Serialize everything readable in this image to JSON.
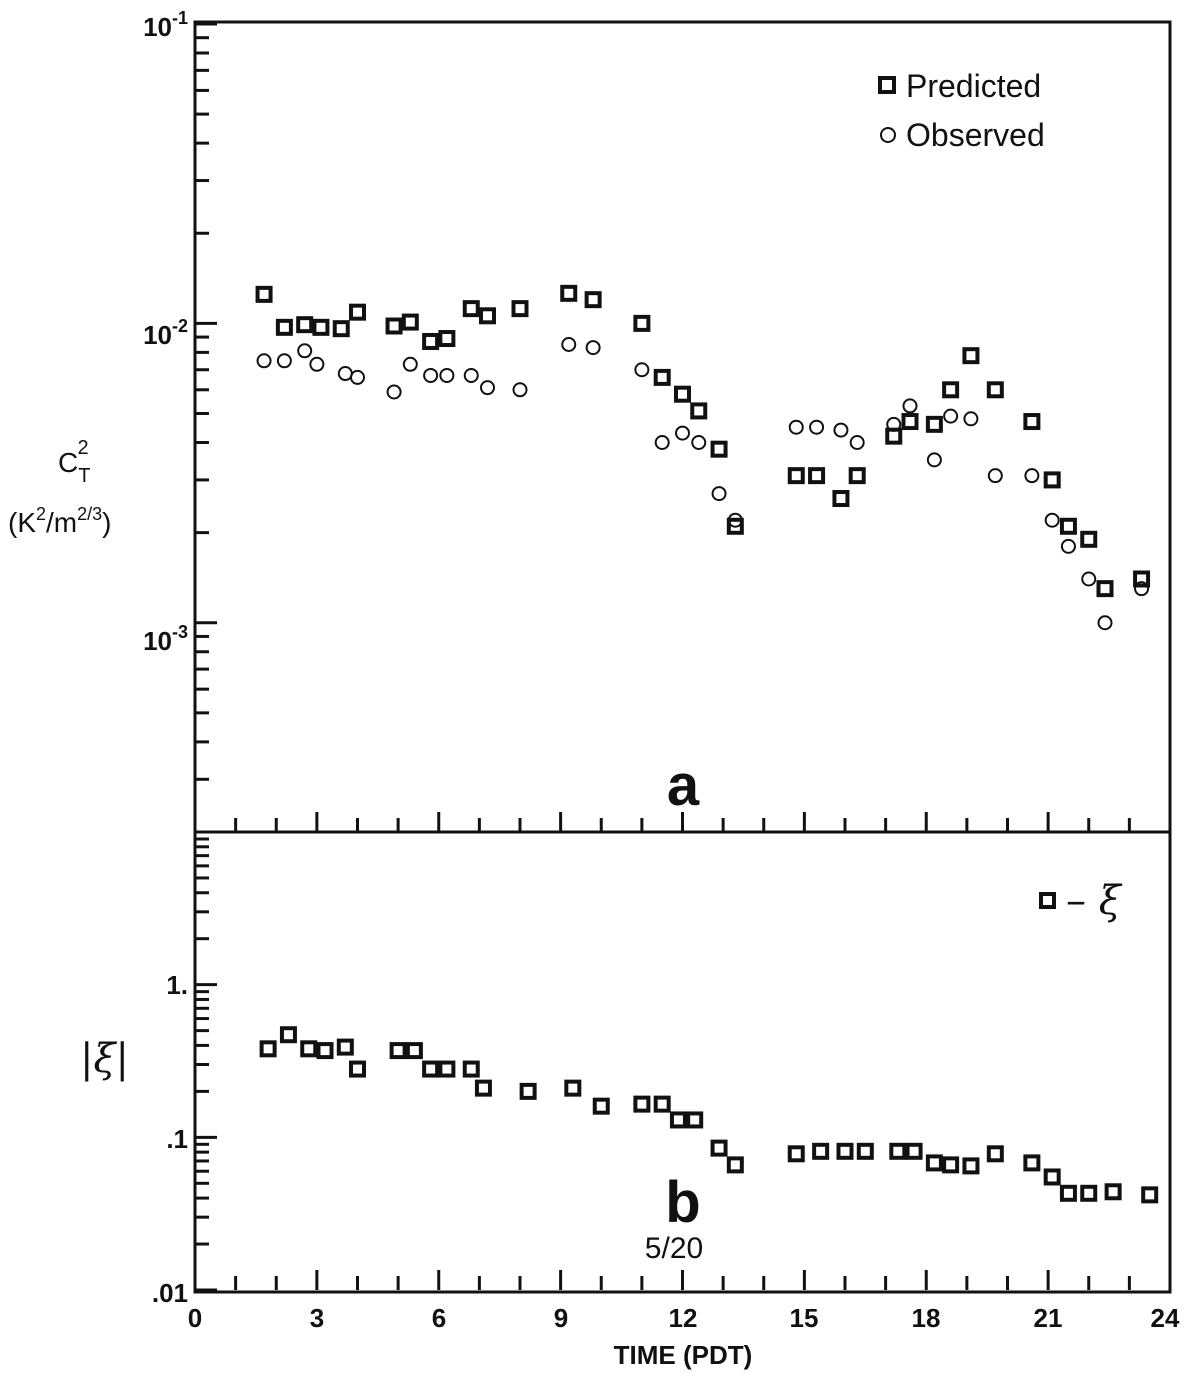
{
  "chart_data": [
    {
      "panel": "a",
      "type": "scatter",
      "ylabel_main": "C",
      "ylabel_sub": "T",
      "ylabel_sup": "2",
      "ylabel_unit_open": "(K",
      "ylabel_unit_sup1": "2",
      "ylabel_unit_mid": "/m",
      "ylabel_unit_sup2": "2/3",
      "ylabel_unit_close": ")",
      "yscale": "log",
      "ylim": [
        0.0002,
        0.1
      ],
      "xlim": [
        0,
        24
      ],
      "y_tick_base": "10",
      "y_ticks": [
        {
          "value": 0.1,
          "exp": "-1"
        },
        {
          "value": 0.01,
          "exp": "-2"
        },
        {
          "value": 0.001,
          "exp": "-3"
        }
      ],
      "legend_position": "top-right",
      "series": [
        {
          "name": "Predicted",
          "marker": "square",
          "points": [
            [
              1.7,
              0.0125
            ],
            [
              2.2,
              0.0097
            ],
            [
              2.7,
              0.0099
            ],
            [
              3.1,
              0.0097
            ],
            [
              3.6,
              0.0096
            ],
            [
              4.0,
              0.0109
            ],
            [
              4.9,
              0.0098
            ],
            [
              5.3,
              0.0101
            ],
            [
              5.8,
              0.0087
            ],
            [
              6.2,
              0.0089
            ],
            [
              6.8,
              0.0112
            ],
            [
              7.2,
              0.0106
            ],
            [
              8.0,
              0.0112
            ],
            [
              9.2,
              0.0126
            ],
            [
              9.8,
              0.012
            ],
            [
              11.0,
              0.01
            ],
            [
              11.5,
              0.0066
            ],
            [
              12.0,
              0.0058
            ],
            [
              12.4,
              0.0051
            ],
            [
              12.9,
              0.0038
            ],
            [
              13.3,
              0.0021
            ],
            [
              14.8,
              0.0031
            ],
            [
              15.3,
              0.0031
            ],
            [
              15.9,
              0.0026
            ],
            [
              16.3,
              0.0031
            ],
            [
              17.2,
              0.0042
            ],
            [
              17.6,
              0.0047
            ],
            [
              18.2,
              0.0046
            ],
            [
              18.6,
              0.006
            ],
            [
              19.1,
              0.0078
            ],
            [
              19.7,
              0.006
            ],
            [
              20.6,
              0.0047
            ],
            [
              21.1,
              0.003
            ],
            [
              21.5,
              0.0021
            ],
            [
              22.0,
              0.0019
            ],
            [
              22.4,
              0.0013
            ],
            [
              23.3,
              0.0014
            ]
          ]
        },
        {
          "name": "Observed",
          "marker": "circle",
          "points": [
            [
              1.7,
              0.0075
            ],
            [
              2.2,
              0.0075
            ],
            [
              2.7,
              0.0081
            ],
            [
              3.0,
              0.0073
            ],
            [
              3.7,
              0.0068
            ],
            [
              4.0,
              0.0066
            ],
            [
              4.9,
              0.0059
            ],
            [
              5.3,
              0.0073
            ],
            [
              5.8,
              0.0067
            ],
            [
              6.2,
              0.0067
            ],
            [
              6.8,
              0.0067
            ],
            [
              7.2,
              0.0061
            ],
            [
              8.0,
              0.006
            ],
            [
              9.2,
              0.0085
            ],
            [
              9.8,
              0.0083
            ],
            [
              11.0,
              0.007
            ],
            [
              11.5,
              0.004
            ],
            [
              12.0,
              0.0043
            ],
            [
              12.4,
              0.004
            ],
            [
              12.9,
              0.0027
            ],
            [
              13.3,
              0.0022
            ],
            [
              14.8,
              0.0045
            ],
            [
              15.3,
              0.0045
            ],
            [
              15.9,
              0.0044
            ],
            [
              16.3,
              0.004
            ],
            [
              17.2,
              0.0046
            ],
            [
              17.6,
              0.0053
            ],
            [
              18.2,
              0.0035
            ],
            [
              18.6,
              0.0049
            ],
            [
              19.1,
              0.0048
            ],
            [
              19.7,
              0.0031
            ],
            [
              20.6,
              0.0031
            ],
            [
              21.1,
              0.0022
            ],
            [
              21.5,
              0.0018
            ],
            [
              22.0,
              0.0014
            ],
            [
              22.4,
              0.001
            ],
            [
              23.3,
              0.0013
            ]
          ]
        }
      ]
    },
    {
      "panel": "b",
      "type": "scatter",
      "ylabel": "|ξ|",
      "yscale": "log",
      "ylim": [
        0.01,
        10
      ],
      "xlim": [
        0,
        24
      ],
      "xlabel": "TIME (PDT)",
      "x_ticks": [
        "0",
        "3",
        "6",
        "9",
        "12",
        "15",
        "18",
        "21",
        "24"
      ],
      "y_ticks": [
        {
          "value": 1,
          "label": "1."
        },
        {
          "value": 0.1,
          "label": ".1"
        },
        {
          "value": 0.01,
          "label": ".01"
        }
      ],
      "annotation": "5/20",
      "legend_position": "top-right",
      "series": [
        {
          "name": "– ξ",
          "marker": "square",
          "points": [
            [
              1.8,
              0.38
            ],
            [
              2.3,
              0.47
            ],
            [
              2.8,
              0.38
            ],
            [
              3.2,
              0.37
            ],
            [
              3.7,
              0.39
            ],
            [
              4.0,
              0.28
            ],
            [
              5.0,
              0.37
            ],
            [
              5.4,
              0.37
            ],
            [
              5.8,
              0.28
            ],
            [
              6.2,
              0.28
            ],
            [
              6.8,
              0.28
            ],
            [
              7.1,
              0.21
            ],
            [
              8.2,
              0.2
            ],
            [
              9.3,
              0.21
            ],
            [
              10.0,
              0.16
            ],
            [
              11.0,
              0.165
            ],
            [
              11.5,
              0.165
            ],
            [
              11.9,
              0.13
            ],
            [
              12.3,
              0.13
            ],
            [
              12.9,
              0.085
            ],
            [
              13.3,
              0.066
            ],
            [
              14.8,
              0.078
            ],
            [
              15.4,
              0.081
            ],
            [
              16.0,
              0.081
            ],
            [
              16.5,
              0.081
            ],
            [
              17.3,
              0.081
            ],
            [
              17.7,
              0.081
            ],
            [
              18.2,
              0.068
            ],
            [
              18.6,
              0.066
            ],
            [
              19.1,
              0.065
            ],
            [
              19.7,
              0.078
            ],
            [
              20.6,
              0.068
            ],
            [
              21.1,
              0.055
            ],
            [
              21.5,
              0.043
            ],
            [
              22.0,
              0.043
            ],
            [
              22.6,
              0.044
            ],
            [
              23.5,
              0.042
            ]
          ]
        }
      ]
    }
  ]
}
